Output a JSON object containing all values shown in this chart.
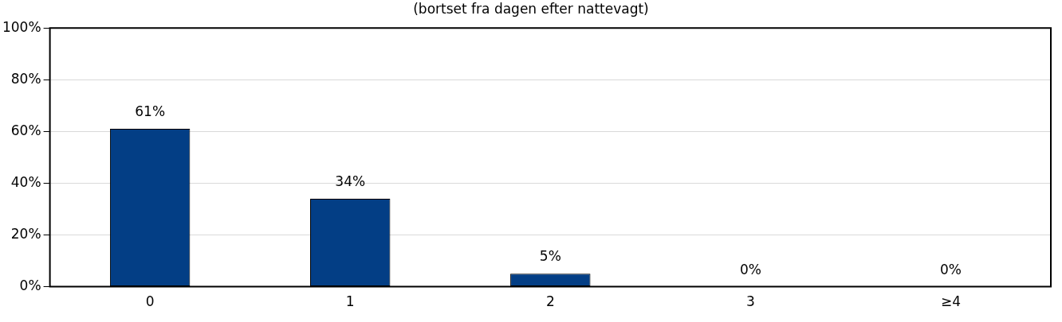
{
  "chart_data": {
    "type": "bar",
    "subtitle": "(bortset fra dagen efter nattevagt)",
    "categories": [
      "0",
      "1",
      "2",
      "3",
      "≥4"
    ],
    "values": [
      61,
      34,
      5,
      0,
      0
    ],
    "value_labels": [
      "61%",
      "34%",
      "5%",
      "0%",
      "0%"
    ],
    "color": "#033e85",
    "ylim": [
      0,
      100
    ],
    "yticks": [
      {
        "value": 0,
        "label": "0%"
      },
      {
        "value": 20,
        "label": "20%"
      },
      {
        "value": 40,
        "label": "40%"
      },
      {
        "value": 60,
        "label": "60%"
      },
      {
        "value": 80,
        "label": "80%"
      },
      {
        "value": 100,
        "label": "100%"
      }
    ],
    "grid": "y",
    "legend": false
  }
}
